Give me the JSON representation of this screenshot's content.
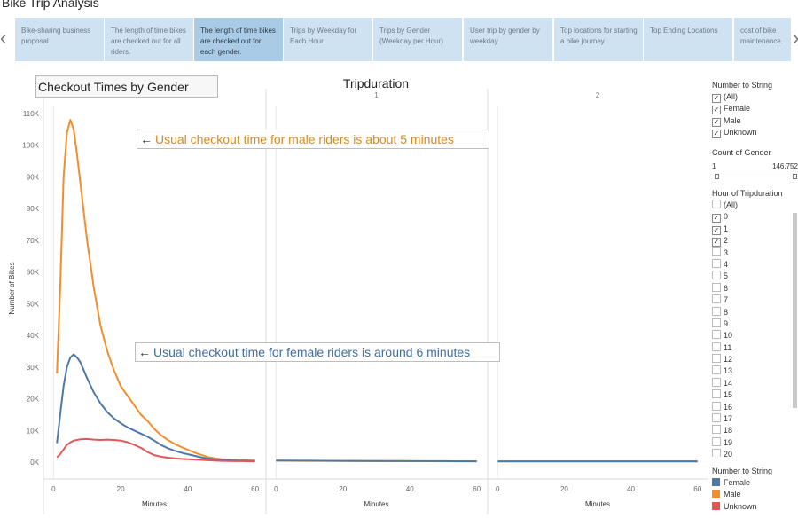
{
  "story": {
    "title": "Bike Trip Analysis",
    "tabs": [
      {
        "label": "Bike-sharing business proposal",
        "active": false
      },
      {
        "label": "The length of time bikes are checked out for all riders.",
        "active": false
      },
      {
        "label": "The length of time bikes are checked out for each gender.",
        "active": true
      },
      {
        "label": "Trips by Weekday for Each Hour",
        "active": false
      },
      {
        "label": "Trips by Gender (Weekday per Hour)",
        "active": false
      },
      {
        "label": "User trip by gender by weekday",
        "active": false
      },
      {
        "label": "Top locations for starting a bike journey",
        "active": false
      },
      {
        "label": "Top Ending Locations",
        "active": false
      },
      {
        "label": "cost of bike maintenance.",
        "active": false
      }
    ],
    "prev_icon": "chevron-left-icon",
    "next_icon": "chevron-right-icon"
  },
  "sheet": {
    "title": "Checkout Times by Gender"
  },
  "annotations": {
    "male": "Usual checkout time for male riders is about 5 minutes",
    "female": "Usual checkout time for female riders is around 6 minutes"
  },
  "filters": {
    "number_to_string": {
      "title": "Number to String",
      "items": [
        {
          "label": "(All)",
          "checked": true
        },
        {
          "label": "Female",
          "checked": true
        },
        {
          "label": "Male",
          "checked": true
        },
        {
          "label": "Unknown",
          "checked": true
        }
      ]
    },
    "count_of_gender": {
      "title": "Count of Gender",
      "min": "1",
      "max": "146,752"
    },
    "hour_of_tripduration": {
      "title": "Hour of Tripduration",
      "items": [
        {
          "label": "(All)",
          "checked": false
        },
        {
          "label": "0",
          "checked": true
        },
        {
          "label": "1",
          "checked": true
        },
        {
          "label": "2",
          "checked": true
        },
        {
          "label": "3",
          "checked": false
        },
        {
          "label": "4",
          "checked": false
        },
        {
          "label": "5",
          "checked": false
        },
        {
          "label": "6",
          "checked": false
        },
        {
          "label": "7",
          "checked": false
        },
        {
          "label": "8",
          "checked": false
        },
        {
          "label": "9",
          "checked": false
        },
        {
          "label": "10",
          "checked": false
        },
        {
          "label": "11",
          "checked": false
        },
        {
          "label": "12",
          "checked": false
        },
        {
          "label": "13",
          "checked": false
        },
        {
          "label": "14",
          "checked": false
        },
        {
          "label": "15",
          "checked": false
        },
        {
          "label": "16",
          "checked": false
        },
        {
          "label": "17",
          "checked": false
        },
        {
          "label": "18",
          "checked": false
        },
        {
          "label": "19",
          "checked": false
        },
        {
          "label": "20",
          "checked": false
        }
      ]
    }
  },
  "legend": {
    "title": "Number to String",
    "items": [
      {
        "label": "Female",
        "color": "#4e79a7"
      },
      {
        "label": "Male",
        "color": "#f28e2b"
      },
      {
        "label": "Unknown",
        "color": "#e15759"
      }
    ]
  },
  "chart_data": {
    "type": "line",
    "title": "Tripduration",
    "ylabel": "Number of Bikes",
    "xlabel": "Minutes",
    "ylim": [
      0,
      110000
    ],
    "y_ticks": [
      0,
      10000,
      20000,
      30000,
      40000,
      50000,
      60000,
      70000,
      80000,
      90000,
      100000,
      110000
    ],
    "y_tick_labels": [
      "0K",
      "10K",
      "20K",
      "30K",
      "40K",
      "50K",
      "60K",
      "70K",
      "80K",
      "90K",
      "100K",
      "110K"
    ],
    "x_ticks": [
      0,
      20,
      40,
      60
    ],
    "panels": [
      {
        "header": "",
        "xlim": [
          -3,
          63
        ],
        "series": [
          {
            "name": "Male",
            "color": "#f28e2b",
            "x": [
              1,
              2,
              3,
              4,
              5,
              6,
              7,
              8,
              10,
              12,
              14,
              16,
              18,
              20,
              22,
              24,
              26,
              28,
              30,
              32,
              34,
              36,
              38,
              40,
              42,
              44,
              46,
              48,
              50,
              52,
              54,
              56,
              58,
              60
            ],
            "y": [
              28000,
              55000,
              90000,
              104000,
              108000,
              105000,
              97000,
              88000,
              70000,
              55000,
              43000,
              35000,
              29000,
              24000,
              21000,
              18000,
              15000,
              13000,
              10500,
              8500,
              7000,
              5800,
              4800,
              3900,
              3000,
              2300,
              1600,
              1200,
              900,
              800,
              700,
              600,
              550,
              500
            ]
          },
          {
            "name": "Female",
            "color": "#4e79a7",
            "x": [
              1,
              2,
              3,
              4,
              5,
              6,
              7,
              8,
              10,
              12,
              14,
              16,
              18,
              20,
              22,
              24,
              26,
              28,
              30,
              32,
              34,
              36,
              38,
              40,
              42,
              44,
              46,
              48,
              50,
              52,
              54,
              56,
              58,
              60
            ],
            "y": [
              6000,
              15000,
              24000,
              30000,
              33000,
              34000,
              33000,
              31500,
              26500,
              22000,
              18500,
              15800,
              13800,
              12300,
              11000,
              10000,
              9000,
              8000,
              6800,
              5400,
              4400,
              3600,
              3000,
              2500,
              2000,
              1500,
              1100,
              900,
              700,
              600,
              500,
              450,
              400,
              350
            ]
          },
          {
            "name": "Unknown",
            "color": "#e15759",
            "x": [
              1,
              2,
              3,
              4,
              5,
              6,
              8,
              10,
              12,
              14,
              16,
              18,
              20,
              22,
              24,
              26,
              28,
              30,
              32,
              34,
              36,
              38,
              40,
              42,
              44,
              46,
              48,
              50,
              52,
              54,
              56,
              58,
              60
            ],
            "y": [
              1500,
              2500,
              4000,
              5500,
              6200,
              6800,
              7200,
              7300,
              7100,
              7000,
              7100,
              7000,
              6800,
              6300,
              5500,
              4500,
              3200,
              2200,
              1700,
              1400,
              1200,
              1000,
              900,
              800,
              700,
              600,
              500,
              400,
              350,
              300,
              300,
              250,
              250
            ]
          }
        ]
      },
      {
        "header": "1",
        "xlim": [
          -3,
          63
        ],
        "series": [
          {
            "name": "Male",
            "color": "#f28e2b",
            "x": [
              0,
              10,
              20,
              30,
              40,
              50,
              60
            ],
            "y": [
              450,
              400,
              350,
              300,
              300,
              250,
              250
            ]
          },
          {
            "name": "Female",
            "color": "#4e79a7",
            "x": [
              0,
              10,
              20,
              30,
              40,
              50,
              60
            ],
            "y": [
              500,
              450,
              400,
              350,
              300,
              300,
              250
            ]
          }
        ]
      },
      {
        "header": "2",
        "xlim": [
          -3,
          63
        ],
        "series": [
          {
            "name": "Male",
            "color": "#f28e2b",
            "x": [
              0,
              10,
              20,
              30,
              40,
              50,
              60
            ],
            "y": [
              200,
              200,
              200,
              200,
              200,
              200,
              200
            ]
          },
          {
            "name": "Female",
            "color": "#4e79a7",
            "x": [
              0,
              10,
              20,
              30,
              40,
              50,
              60
            ],
            "y": [
              250,
              250,
              250,
              250,
              250,
              250,
              250
            ]
          }
        ]
      }
    ]
  }
}
